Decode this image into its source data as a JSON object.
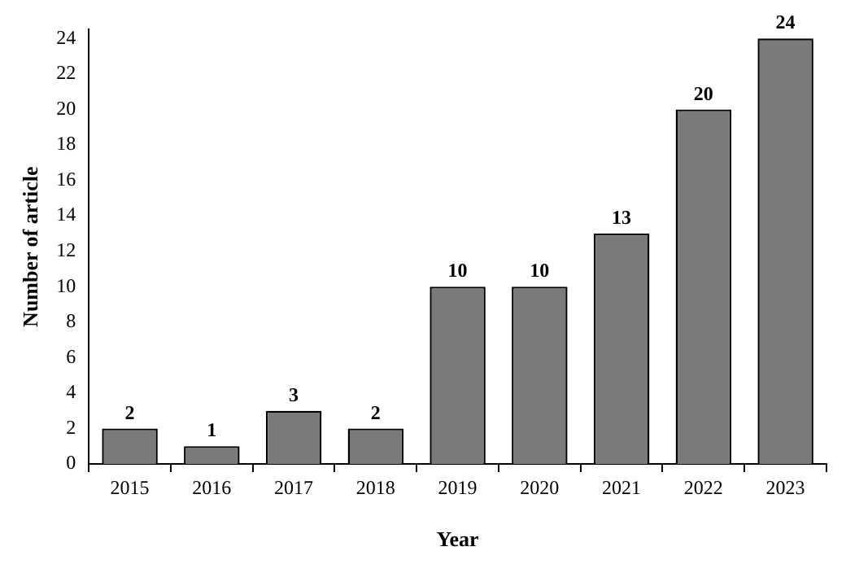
{
  "chart_data": {
    "type": "bar",
    "xlabel": "Year",
    "ylabel": "Number of article",
    "categories": [
      "2015",
      "2016",
      "2017",
      "2018",
      "2019",
      "2020",
      "2021",
      "2022",
      "2023"
    ],
    "values": [
      2,
      1,
      3,
      2,
      10,
      10,
      13,
      20,
      24
    ],
    "color": "#7a7a7a",
    "ylim": [
      0,
      24.5
    ],
    "yticks": [
      0,
      2,
      4,
      6,
      8,
      10,
      12,
      14,
      16,
      18,
      20,
      22,
      24
    ],
    "data_labels": true,
    "grid": false,
    "legend": false
  }
}
